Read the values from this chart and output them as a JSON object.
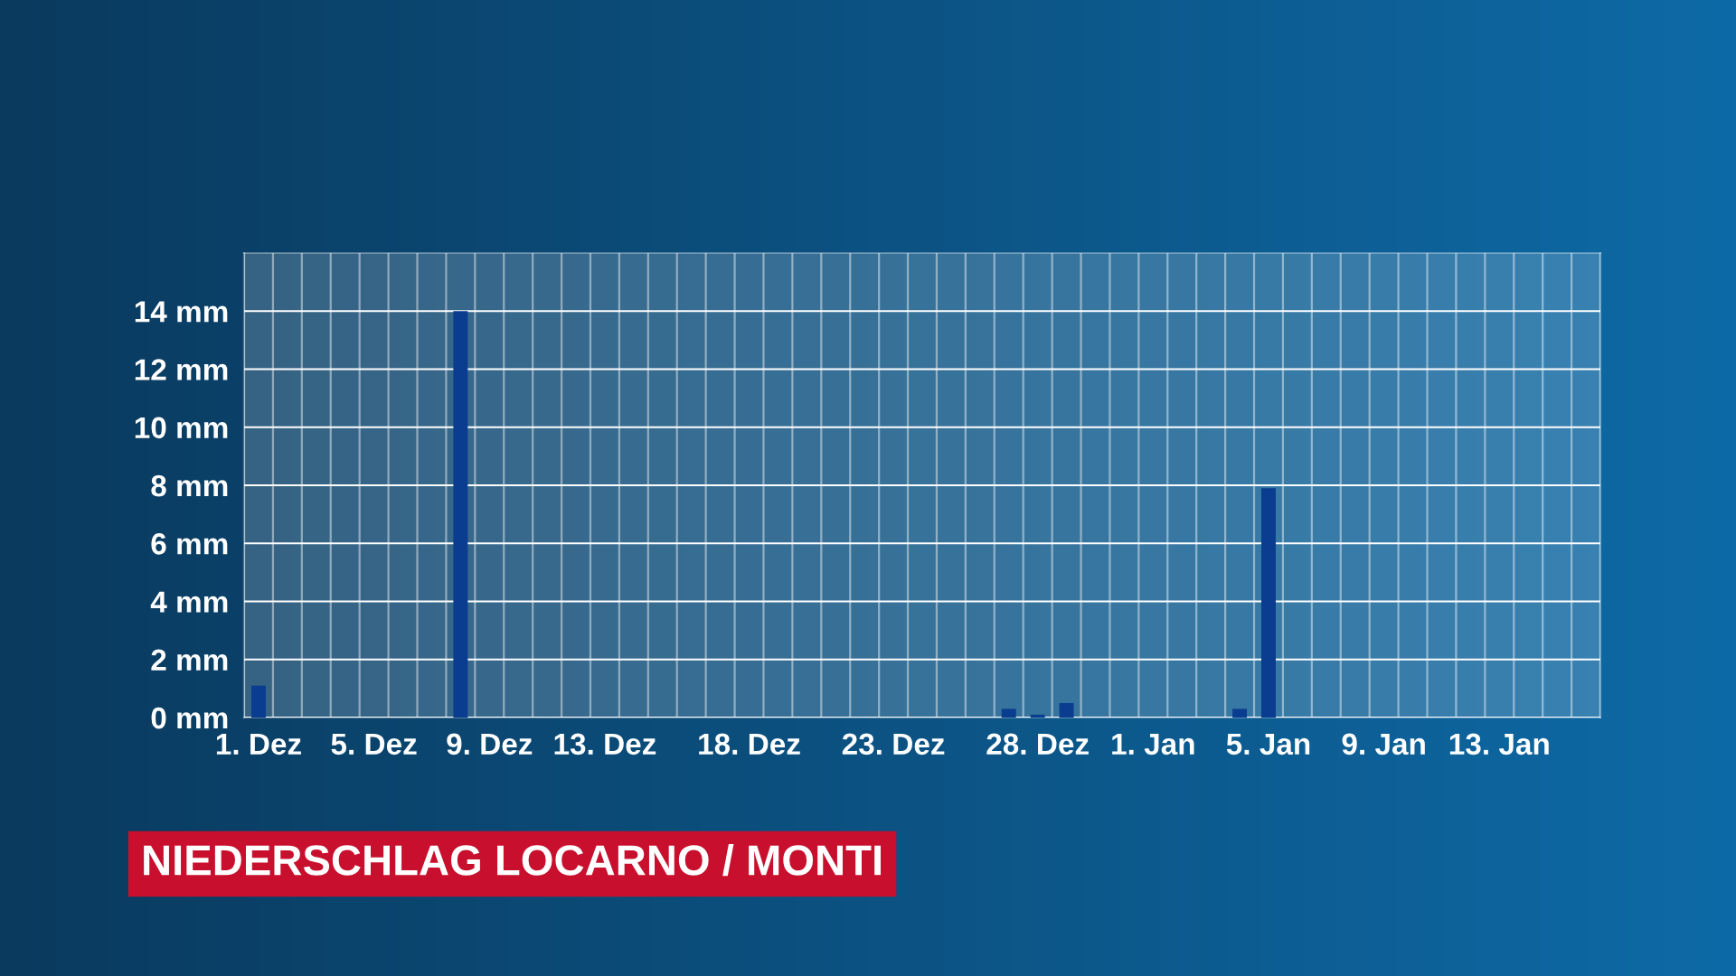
{
  "chart_data": {
    "type": "bar",
    "title": "NIEDERSCHLAG LOCARNO / MONTI",
    "categories": [
      "1. Dez",
      null,
      null,
      null,
      "5. Dez",
      null,
      null,
      null,
      "9. Dez",
      null,
      null,
      null,
      "13. Dez",
      null,
      null,
      null,
      null,
      "18. Dez",
      null,
      null,
      null,
      null,
      "23. Dez",
      null,
      null,
      null,
      null,
      "28. Dez",
      null,
      null,
      null,
      "1. Jan",
      null,
      null,
      null,
      "5. Jan",
      null,
      null,
      null,
      "9. Jan",
      null,
      null,
      null,
      "13. Jan",
      null,
      null,
      null
    ],
    "values": [
      1.1,
      0,
      0,
      0,
      0,
      0,
      0,
      14.0,
      0,
      0,
      0,
      0,
      0,
      0,
      0,
      0,
      0,
      0,
      0,
      0,
      0,
      0,
      0,
      0,
      0,
      0,
      0.3,
      0.1,
      0.5,
      0,
      0,
      0,
      0,
      0,
      0.3,
      7.9,
      0,
      0,
      0,
      0,
      0,
      0,
      0,
      0,
      0,
      0,
      0
    ],
    "color": "#0a3d8f",
    "ylim": [
      0,
      16
    ],
    "yticks": [
      {
        "value": 0,
        "label": "0 mm"
      },
      {
        "value": 2,
        "label": "2 mm"
      },
      {
        "value": 4,
        "label": "4 mm"
      },
      {
        "value": 6,
        "label": "6 mm"
      },
      {
        "value": 8,
        "label": "8 mm"
      },
      {
        "value": 10,
        "label": "10 mm"
      },
      {
        "value": 12,
        "label": "12 mm"
      },
      {
        "value": 14,
        "label": "14 mm"
      }
    ],
    "grid": true
  }
}
